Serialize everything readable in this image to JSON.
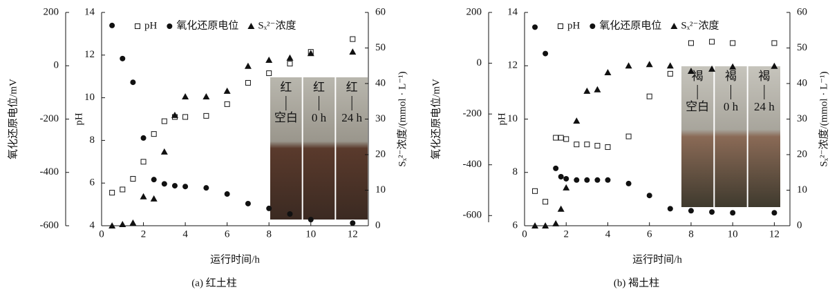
{
  "chart_data": [
    {
      "type": "scatter",
      "caption": "(a) 红土柱",
      "xlabel": "运行时间/h",
      "ylabel": "pH",
      "y2label": "Sₓ²⁻浓度/(mmol · L⁻¹)",
      "y3label": "氧化还原电位/mV",
      "x": [
        0.5,
        1,
        1.5,
        2,
        2.5,
        3,
        3.5,
        4,
        5,
        6,
        7,
        8,
        9,
        10,
        12
      ],
      "xlim": [
        0,
        12.75
      ],
      "xticks": [
        0,
        2,
        4,
        6,
        8,
        10,
        12
      ],
      "ylim": [
        4,
        14
      ],
      "yticks": [
        4,
        6,
        8,
        10,
        12,
        14
      ],
      "y2lim": [
        0,
        60
      ],
      "y2ticks": [
        0,
        10,
        20,
        30,
        40,
        50,
        60
      ],
      "y3lim": [
        -600,
        200
      ],
      "y3ticks": [
        -600,
        -400,
        -200,
        0,
        200
      ],
      "series": [
        {
          "name": "pH",
          "marker": "square",
          "color": "#111111",
          "axis": "y",
          "values": [
            5.55,
            5.7,
            6.2,
            7.0,
            8.3,
            8.9,
            9.1,
            9.1,
            9.15,
            9.7,
            10.7,
            11.15,
            11.6,
            12.15,
            12.75
          ]
        },
        {
          "name": "氧化还原电位",
          "marker": "circle",
          "color": "#111111",
          "axis": "y3",
          "values": [
            151,
            27,
            -62,
            -271,
            -427,
            -443,
            -450,
            -453,
            -458,
            -481,
            -517,
            -535,
            -556,
            -577,
            -590
          ]
        },
        {
          "name": "Sₓ²⁻浓度",
          "marker": "triangle",
          "color": "#111111",
          "axis": "y2",
          "values": [
            0,
            0.4,
            0.8,
            8.2,
            7.6,
            20.8,
            31.1,
            36.3,
            36.3,
            37.9,
            44.9,
            46.6,
            47.2,
            48.5,
            48.9
          ]
        }
      ],
      "inset_labels": [
        [
          "红",
          "空白"
        ],
        [
          "红",
          "0 h"
        ],
        [
          "红",
          "24 h"
        ]
      ]
    },
    {
      "type": "scatter",
      "caption": "(b) 褐土柱",
      "xlabel": "运行时间/h",
      "ylabel": "pH",
      "y2label": "Sₓ²⁻浓度/(mmol · L⁻¹)",
      "y3label": "氧化还原电位/mV",
      "x": [
        0.5,
        1,
        1.5,
        1.75,
        2,
        2.5,
        3,
        3.5,
        4,
        5,
        6,
        7,
        8,
        9,
        10,
        12
      ],
      "xlim": [
        0,
        12.75
      ],
      "xticks": [
        0,
        2,
        4,
        6,
        8,
        10,
        12
      ],
      "ylim": [
        6,
        14
      ],
      "yticks": [
        6,
        8,
        10,
        12,
        14
      ],
      "y2lim": [
        0,
        60
      ],
      "y2ticks": [
        0,
        10,
        20,
        30,
        40,
        50,
        60
      ],
      "y3lim": [
        -640,
        200
      ],
      "y3ticks": [
        -600,
        -400,
        -200,
        0,
        200
      ],
      "series": [
        {
          "name": "pH",
          "marker": "square",
          "color": "#111111",
          "axis": "y",
          "values": [
            7.3,
            6.9,
            9.3,
            9.3,
            9.25,
            9.05,
            9.05,
            9.0,
            8.95,
            9.35,
            10.85,
            11.7,
            12.85,
            12.9,
            12.85,
            12.85
          ]
        },
        {
          "name": "氧化还原电位",
          "marker": "circle",
          "color": "#111111",
          "axis": "y3",
          "values": [
            142,
            38,
            -414,
            -447,
            -455,
            -460,
            -460,
            -460,
            -460,
            -474,
            -521,
            -573,
            -581,
            -586,
            -589,
            -589
          ]
        },
        {
          "name": "Sₓ²⁻浓度",
          "marker": "triangle",
          "color": "#111111",
          "axis": "y2",
          "values": [
            0,
            0,
            0.6,
            4.7,
            10.7,
            29.5,
            37.9,
            38.3,
            43.1,
            45,
            45.4,
            45,
            43.5,
            44.1,
            44.7,
            44.9
          ]
        }
      ],
      "inset_labels": [
        [
          "褐",
          "空白"
        ],
        [
          "褐",
          "0 h"
        ],
        [
          "褐",
          "24 h"
        ]
      ]
    }
  ]
}
